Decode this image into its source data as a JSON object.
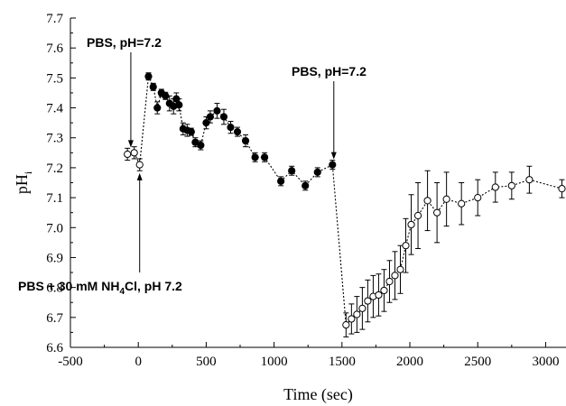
{
  "chart_data": {
    "type": "scatter",
    "xlabel": "Time (sec)",
    "ylabel": "pH",
    "ylabel_sub": "i",
    "xlim": [
      -500,
      3150
    ],
    "ylim": [
      6.6,
      7.7
    ],
    "xticks": [
      -500,
      0,
      500,
      1000,
      1500,
      2000,
      2500,
      3000
    ],
    "yticks": [
      6.6,
      6.7,
      6.8,
      6.9,
      7.0,
      7.1,
      7.2,
      7.3,
      7.4,
      7.5,
      7.6,
      7.7
    ],
    "xtick_labels": [
      "-500",
      "0",
      "500",
      "1000",
      "1500",
      "2000",
      "2500",
      "3000"
    ],
    "ytick_labels": [
      "6.6",
      "6.7",
      "6.8",
      "6.9",
      "7.0",
      "7.1",
      "7.2",
      "7.3",
      "7.4",
      "7.5",
      "7.6",
      "7.7"
    ],
    "grid": false,
    "series": [
      {
        "marker": "open-circle",
        "connector": "dotted",
        "points": [
          {
            "x": -80,
            "y": 7.245,
            "err": 0.02
          },
          {
            "x": -30,
            "y": 7.25,
            "err": 0.02
          },
          {
            "x": 10,
            "y": 7.21,
            "err": 0.02
          }
        ]
      },
      {
        "marker": "filled-circle",
        "connector": "dotted",
        "points": [
          {
            "x": 75,
            "y": 7.505,
            "err": 0.012
          },
          {
            "x": 110,
            "y": 7.47,
            "err": 0.012
          },
          {
            "x": 140,
            "y": 7.4,
            "err": 0.02
          },
          {
            "x": 170,
            "y": 7.45,
            "err": 0.012
          },
          {
            "x": 200,
            "y": 7.44,
            "err": 0.012
          },
          {
            "x": 230,
            "y": 7.415,
            "err": 0.025
          },
          {
            "x": 260,
            "y": 7.405,
            "err": 0.025
          },
          {
            "x": 280,
            "y": 7.43,
            "err": 0.02
          },
          {
            "x": 300,
            "y": 7.41,
            "err": 0.02
          },
          {
            "x": 330,
            "y": 7.33,
            "err": 0.02
          },
          {
            "x": 360,
            "y": 7.325,
            "err": 0.02
          },
          {
            "x": 390,
            "y": 7.32,
            "err": 0.012
          },
          {
            "x": 420,
            "y": 7.285,
            "err": 0.015
          },
          {
            "x": 460,
            "y": 7.275,
            "err": 0.015
          },
          {
            "x": 500,
            "y": 7.35,
            "err": 0.02
          },
          {
            "x": 530,
            "y": 7.37,
            "err": 0.02
          },
          {
            "x": 580,
            "y": 7.39,
            "err": 0.025
          },
          {
            "x": 630,
            "y": 7.37,
            "err": 0.025
          },
          {
            "x": 680,
            "y": 7.335,
            "err": 0.02
          },
          {
            "x": 730,
            "y": 7.32,
            "err": 0.015
          },
          {
            "x": 790,
            "y": 7.29,
            "err": 0.02
          },
          {
            "x": 860,
            "y": 7.235,
            "err": 0.015
          },
          {
            "x": 930,
            "y": 7.235,
            "err": 0.015
          },
          {
            "x": 1050,
            "y": 7.155,
            "err": 0.015
          },
          {
            "x": 1130,
            "y": 7.19,
            "err": 0.015
          },
          {
            "x": 1230,
            "y": 7.14,
            "err": 0.015
          },
          {
            "x": 1320,
            "y": 7.185,
            "err": 0.015
          },
          {
            "x": 1430,
            "y": 7.21,
            "err": 0.015
          }
        ]
      },
      {
        "marker": "open-circle",
        "connector": "dotted",
        "points": [
          {
            "x": 1530,
            "y": 6.675,
            "err": 0.04
          },
          {
            "x": 1570,
            "y": 6.695,
            "err": 0.05
          },
          {
            "x": 1610,
            "y": 6.71,
            "err": 0.06
          },
          {
            "x": 1650,
            "y": 6.73,
            "err": 0.07
          },
          {
            "x": 1690,
            "y": 6.755,
            "err": 0.07
          },
          {
            "x": 1730,
            "y": 6.77,
            "err": 0.07
          },
          {
            "x": 1770,
            "y": 6.775,
            "err": 0.07
          },
          {
            "x": 1810,
            "y": 6.79,
            "err": 0.07
          },
          {
            "x": 1850,
            "y": 6.82,
            "err": 0.07
          },
          {
            "x": 1890,
            "y": 6.84,
            "err": 0.08
          },
          {
            "x": 1930,
            "y": 6.86,
            "err": 0.08
          },
          {
            "x": 1970,
            "y": 6.94,
            "err": 0.09
          },
          {
            "x": 2010,
            "y": 7.01,
            "err": 0.1
          },
          {
            "x": 2060,
            "y": 7.04,
            "err": 0.11
          },
          {
            "x": 2130,
            "y": 7.09,
            "err": 0.1
          },
          {
            "x": 2200,
            "y": 7.05,
            "err": 0.1
          },
          {
            "x": 2270,
            "y": 7.095,
            "err": 0.09
          },
          {
            "x": 2380,
            "y": 7.08,
            "err": 0.07
          },
          {
            "x": 2500,
            "y": 7.1,
            "err": 0.06
          },
          {
            "x": 2630,
            "y": 7.135,
            "err": 0.05
          },
          {
            "x": 2750,
            "y": 7.14,
            "err": 0.045
          },
          {
            "x": 2880,
            "y": 7.16,
            "err": 0.045
          },
          {
            "x": 3120,
            "y": 7.13,
            "err": 0.03
          }
        ]
      }
    ],
    "annotations": [
      {
        "text": "PBS, pH=7.2",
        "arrow_x": -55,
        "arrow_y": 7.265,
        "direction": "down"
      },
      {
        "text": "PBS + 30 mM NH",
        "sub": "4",
        "text_after": "Cl, pH 7.2",
        "arrow_x": 10,
        "arrow_y": 7.185,
        "direction": "up"
      },
      {
        "text": "PBS, pH=7.2",
        "arrow_x": 1440,
        "arrow_y": 7.225,
        "direction": "down"
      }
    ]
  }
}
